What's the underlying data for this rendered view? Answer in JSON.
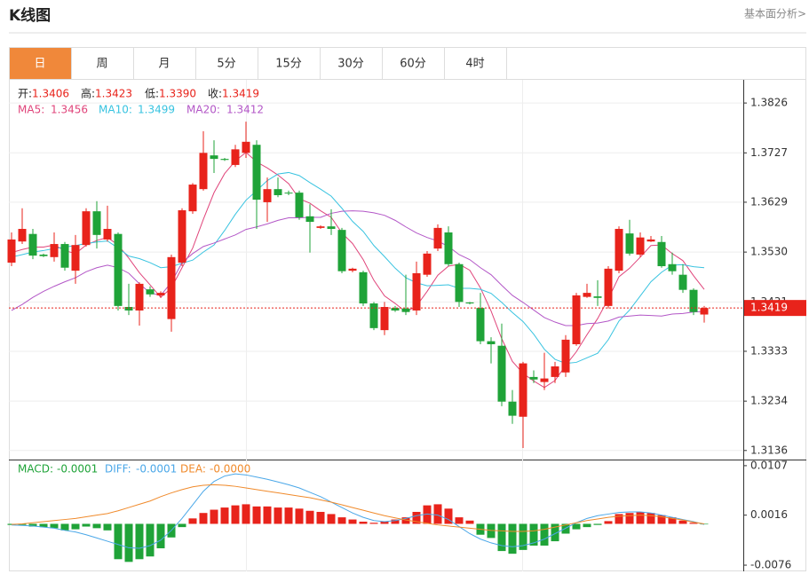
{
  "header": {
    "title": "K线图",
    "link": "基本面分析>"
  },
  "tabs": [
    "日",
    "周",
    "月",
    "5分",
    "15分",
    "30分",
    "60分",
    "4时"
  ],
  "active_tab": "日",
  "chart_data": [
    {
      "type": "candlestick",
      "ylim": [
        1.3118,
        1.3872
      ],
      "yticks": [
        1.3826,
        1.3727,
        1.3629,
        {
          "value": 1.353,
          "label": "1.3530"
        },
        1.3431,
        1.3333,
        1.3234,
        1.3136
      ],
      "grid": true,
      "up_color": "#e8231b",
      "down_color": "#1fa338",
      "price_line": 1.3419,
      "quote": [
        {
          "label": "开:",
          "value": "1.3406"
        },
        {
          "label": "高:",
          "value": "1.3423"
        },
        {
          "label": "低:",
          "value": "1.3390"
        },
        {
          "label": "收:",
          "value": "1.3419"
        }
      ],
      "ohlc": [
        [
          1.3509,
          1.3569,
          1.3502,
          1.3555
        ],
        [
          1.3551,
          1.3617,
          1.3546,
          1.3576
        ],
        [
          1.3566,
          1.3576,
          1.3516,
          1.3523
        ],
        [
          1.3525,
          1.3527,
          1.352,
          1.3522
        ],
        [
          1.352,
          1.3569,
          1.3511,
          1.3546
        ],
        [
          1.3546,
          1.355,
          1.3493,
          1.3499
        ],
        [
          1.3493,
          1.3564,
          1.3467,
          1.3544
        ],
        [
          1.3544,
          1.3617,
          1.3541,
          1.3611
        ],
        [
          1.3611,
          1.3631,
          1.3537,
          1.3564
        ],
        [
          1.3555,
          1.3622,
          1.3551,
          1.3576
        ],
        [
          1.3566,
          1.3569,
          1.3414,
          1.3423
        ],
        [
          1.3421,
          1.3467,
          1.3405,
          1.3414
        ],
        [
          1.3414,
          1.347,
          1.3384,
          1.3467
        ],
        [
          1.3456,
          1.3462,
          1.3441,
          1.3446
        ],
        [
          1.3444,
          1.3452,
          1.3439,
          1.3449
        ],
        [
          1.3397,
          1.3525,
          1.3372,
          1.352
        ],
        [
          1.3509,
          1.3617,
          1.3502,
          1.3613
        ],
        [
          1.3611,
          1.3667,
          1.3606,
          1.3664
        ],
        [
          1.3655,
          1.377,
          1.3652,
          1.3727
        ],
        [
          1.3722,
          1.3752,
          1.3687,
          1.3715
        ],
        [
          1.3715,
          1.3717,
          1.3711,
          1.3713
        ],
        [
          1.3703,
          1.3743,
          1.3699,
          1.3734
        ],
        [
          1.3727,
          1.3789,
          1.3717,
          1.3749
        ],
        [
          1.3743,
          1.3752,
          1.3576,
          1.3634
        ],
        [
          1.3629,
          1.3678,
          1.359,
          1.3655
        ],
        [
          1.3655,
          1.3678,
          1.3639,
          1.3643
        ],
        [
          1.3648,
          1.3652,
          1.3643,
          1.3647
        ],
        [
          1.3648,
          1.3652,
          1.3594,
          1.3599
        ],
        [
          1.3601,
          1.3625,
          1.3529,
          1.359
        ],
        [
          1.3578,
          1.3583,
          1.3576,
          1.3581
        ],
        [
          1.3581,
          1.3615,
          1.3564,
          1.3576
        ],
        [
          1.3574,
          1.3578,
          1.3488,
          1.3492
        ],
        [
          1.3493,
          1.3499,
          1.349,
          1.3497
        ],
        [
          1.349,
          1.3493,
          1.3423,
          1.3428
        ],
        [
          1.3428,
          1.3431,
          1.3375,
          1.3379
        ],
        [
          1.3375,
          1.3431,
          1.3365,
          1.3421
        ],
        [
          1.3419,
          1.3423,
          1.3411,
          1.3414
        ],
        [
          1.3418,
          1.3485,
          1.3405,
          1.3411
        ],
        [
          1.3414,
          1.3511,
          1.3405,
          1.3488
        ],
        [
          1.3485,
          1.3532,
          1.3481,
          1.3527
        ],
        [
          1.3537,
          1.3585,
          1.3532,
          1.3578
        ],
        [
          1.3569,
          1.3581,
          1.3502,
          1.3506
        ],
        [
          1.3506,
          1.3509,
          1.3421,
          1.3431
        ],
        [
          1.343,
          1.3431,
          1.3426,
          1.3428
        ],
        [
          1.3419,
          1.3449,
          1.3347,
          1.3353
        ],
        [
          1.3353,
          1.3361,
          1.3309,
          1.3347
        ],
        [
          1.3344,
          1.3388,
          1.3224,
          1.3233
        ],
        [
          1.3233,
          1.3256,
          1.3189,
          1.3205
        ],
        [
          1.3203,
          1.3312,
          1.3141,
          1.3309
        ],
        [
          1.3282,
          1.3295,
          1.327,
          1.3277
        ],
        [
          1.3272,
          1.333,
          1.3256,
          1.3279
        ],
        [
          1.3282,
          1.3312,
          1.327,
          1.3303
        ],
        [
          1.3291,
          1.3365,
          1.3282,
          1.3356
        ],
        [
          1.3347,
          1.3449,
          1.3344,
          1.3444
        ],
        [
          1.3441,
          1.3467,
          1.3439,
          1.3449
        ],
        [
          1.3442,
          1.3474,
          1.3423,
          1.3439
        ],
        [
          1.3423,
          1.3502,
          1.3418,
          1.3497
        ],
        [
          1.3493,
          1.3581,
          1.3488,
          1.3576
        ],
        [
          1.3567,
          1.3594,
          1.3523,
          1.3527
        ],
        [
          1.3525,
          1.3569,
          1.352,
          1.3559
        ],
        [
          1.3551,
          1.3562,
          1.355,
          1.3555
        ],
        [
          1.355,
          1.3562,
          1.3499,
          1.3502
        ],
        [
          1.3506,
          1.3529,
          1.3485,
          1.3492
        ],
        [
          1.3485,
          1.3506,
          1.3449,
          1.3455
        ],
        [
          1.3455,
          1.3458,
          1.3405,
          1.3411
        ],
        [
          1.3406,
          1.3423,
          1.339,
          1.3419
        ]
      ],
      "series": [
        {
          "name": "MA5:",
          "last_value": "1.3456",
          "color": "#e0457b",
          "values": [
            1.3529,
            1.3535,
            1.354,
            1.354,
            1.3544,
            1.3533,
            1.3527,
            1.3544,
            1.3553,
            1.3559,
            1.3544,
            1.3518,
            1.3489,
            1.3465,
            1.344,
            1.3459,
            1.3499,
            1.3538,
            1.3595,
            1.3648,
            1.3686,
            1.3711,
            1.3728,
            1.3709,
            1.3697,
            1.3683,
            1.3666,
            1.3636,
            1.3627,
            1.3612,
            1.3599,
            1.3568,
            1.3547,
            1.3515,
            1.3474,
            1.3443,
            1.3428,
            1.3411,
            1.3423,
            1.3452,
            1.3484,
            1.3502,
            1.3506,
            1.3494,
            1.3459,
            1.3413,
            1.3358,
            1.3313,
            1.3289,
            1.3274,
            1.3261,
            1.3275,
            1.3305,
            1.3332,
            1.3366,
            1.3398,
            1.3437,
            1.3481,
            1.3498,
            1.352,
            1.3543,
            1.3544,
            1.3527,
            1.3513,
            1.3483,
            1.3456
          ]
        },
        {
          "name": "MA10:",
          "last_value": "1.3499",
          "color": "#38c3e0",
          "values": [
            1.352,
            1.3525,
            1.353,
            1.3533,
            1.3537,
            1.354,
            1.3543,
            1.3547,
            1.355,
            1.3552,
            1.3538,
            1.3522,
            1.3517,
            1.3509,
            1.3499,
            1.3501,
            1.3508,
            1.3514,
            1.353,
            1.3544,
            1.3573,
            1.3605,
            1.3633,
            1.3652,
            1.3672,
            1.3685,
            1.3688,
            1.3682,
            1.3668,
            1.3655,
            1.3641,
            1.3617,
            1.3591,
            1.3571,
            1.3543,
            1.3521,
            1.3498,
            1.3479,
            1.3469,
            1.3463,
            1.3464,
            1.3465,
            1.3458,
            1.3458,
            1.3456,
            1.3448,
            1.343,
            1.341,
            1.3392,
            1.3367,
            1.3337,
            1.3317,
            1.3309,
            1.3311,
            1.332,
            1.3329,
            1.3356,
            1.3393,
            1.3415,
            1.3443,
            1.3471,
            1.349,
            1.3504,
            1.3505,
            1.3501,
            1.3499
          ]
        },
        {
          "name": "MA20:",
          "last_value": "1.3412",
          "color": "#b357c7",
          "values": [
            1.3414,
            1.3426,
            1.344,
            1.3452,
            1.3462,
            1.3471,
            1.3479,
            1.3491,
            1.3499,
            1.3504,
            1.3499,
            1.3488,
            1.3467,
            1.3449,
            1.3444,
            1.347,
            1.3509,
            1.3527,
            1.3541,
            1.3548,
            1.3556,
            1.3564,
            1.3575,
            1.358,
            1.3586,
            1.3593,
            1.3598,
            1.3598,
            1.3599,
            1.3599,
            1.3607,
            1.3611,
            1.3612,
            1.3611,
            1.3608,
            1.3603,
            1.3593,
            1.358,
            1.3568,
            1.3559,
            1.3552,
            1.3541,
            1.3525,
            1.3515,
            1.3499,
            1.3485,
            1.3464,
            1.3444,
            1.343,
            1.3415,
            1.34,
            1.3391,
            1.3384,
            1.3384,
            1.3388,
            1.3389,
            1.3393,
            1.3401,
            1.3403,
            1.3405,
            1.3404,
            1.3403,
            1.3407,
            1.3408,
            1.3411,
            1.3412
          ]
        }
      ]
    },
    {
      "type": "macd",
      "ylim": [
        -0.0089,
        0.0115
      ],
      "yticks": [
        0.0107,
        0.0016,
        -0.0076
      ],
      "grid": false,
      "histogram": {
        "name": "MACD:",
        "last_value": "-0.0001",
        "up_color": "#e8231b",
        "down_color": "#1fa338",
        "values": [
          -0.0002,
          -0.0002,
          -0.0005,
          -0.0006,
          -0.0008,
          -0.0012,
          -0.001,
          -0.0005,
          -0.0008,
          -0.0012,
          -0.0065,
          -0.007,
          -0.0065,
          -0.006,
          -0.0045,
          -0.0025,
          -0.0006,
          0.001,
          0.002,
          0.0026,
          0.003,
          0.0034,
          0.0036,
          0.0032,
          0.0032,
          0.003,
          0.003,
          0.0028,
          0.0024,
          0.0022,
          0.0018,
          0.0012,
          0.0008,
          0.0004,
          0.0002,
          0.0004,
          0.0008,
          0.0012,
          0.0022,
          0.0034,
          0.0036,
          0.0028,
          0.0012,
          0.0006,
          -0.002,
          -0.0026,
          -0.005,
          -0.0055,
          -0.0048,
          -0.004,
          -0.004,
          -0.0032,
          -0.0018,
          -0.001,
          -0.0006,
          -0.0002,
          0.0005,
          0.0018,
          0.002,
          0.0022,
          0.002,
          0.0016,
          0.0012,
          0.0006,
          0.0002,
          -0.0001
        ]
      },
      "series": [
        {
          "name": "DIFF:",
          "last_value": "-0.0001",
          "color": "#4aa7e8",
          "values": [
            -0.0002,
            -0.0003,
            -0.0004,
            -0.0006,
            -0.0008,
            -0.0012,
            -0.0015,
            -0.002,
            -0.0026,
            -0.0032,
            -0.0038,
            -0.0044,
            -0.0045,
            -0.004,
            -0.003,
            -0.0012,
            0.001,
            0.0035,
            0.006,
            0.0078,
            0.0088,
            0.0092,
            0.009,
            0.0086,
            0.0082,
            0.0077,
            0.0072,
            0.0066,
            0.0058,
            0.005,
            0.004,
            0.003,
            0.002,
            0.0012,
            0.0006,
            0.0004,
            0.0006,
            0.001,
            0.0015,
            0.0018,
            0.0016,
            0.0008,
            -0.0005,
            -0.0018,
            -0.0028,
            -0.0035,
            -0.004,
            -0.0042,
            -0.004,
            -0.0035,
            -0.0028,
            -0.0018,
            -0.0008,
            0.0002,
            0.001,
            0.0015,
            0.0018,
            0.0021,
            0.0022,
            0.0022,
            0.002,
            0.0016,
            0.0012,
            0.0008,
            0.0004,
            -0.0001
          ]
        },
        {
          "name": "DEA:",
          "last_value": "-0.0000",
          "color": "#f08a2b",
          "values": [
            -0.0001,
            0.0,
            0.0002,
            0.0004,
            0.0006,
            0.0008,
            0.001,
            0.0013,
            0.0016,
            0.0019,
            0.0024,
            0.003,
            0.0036,
            0.0042,
            0.005,
            0.0057,
            0.0063,
            0.0068,
            0.0071,
            0.0072,
            0.0071,
            0.0069,
            0.0066,
            0.0063,
            0.006,
            0.0057,
            0.0054,
            0.0051,
            0.0048,
            0.0044,
            0.004,
            0.0035,
            0.003,
            0.0025,
            0.002,
            0.0015,
            0.0011,
            0.0007,
            0.0004,
            0.0001,
            -0.0002,
            -0.0004,
            -0.0006,
            -0.0008,
            -0.001,
            -0.0012,
            -0.0013,
            -0.0014,
            -0.0014,
            -0.0013,
            -0.001,
            -0.0006,
            -0.0002,
            0.0002,
            0.0006,
            0.0009,
            0.0012,
            0.0014,
            0.0015,
            0.0016,
            0.0015,
            0.0013,
            0.001,
            0.0007,
            0.0003,
            0.0
          ]
        }
      ]
    }
  ]
}
